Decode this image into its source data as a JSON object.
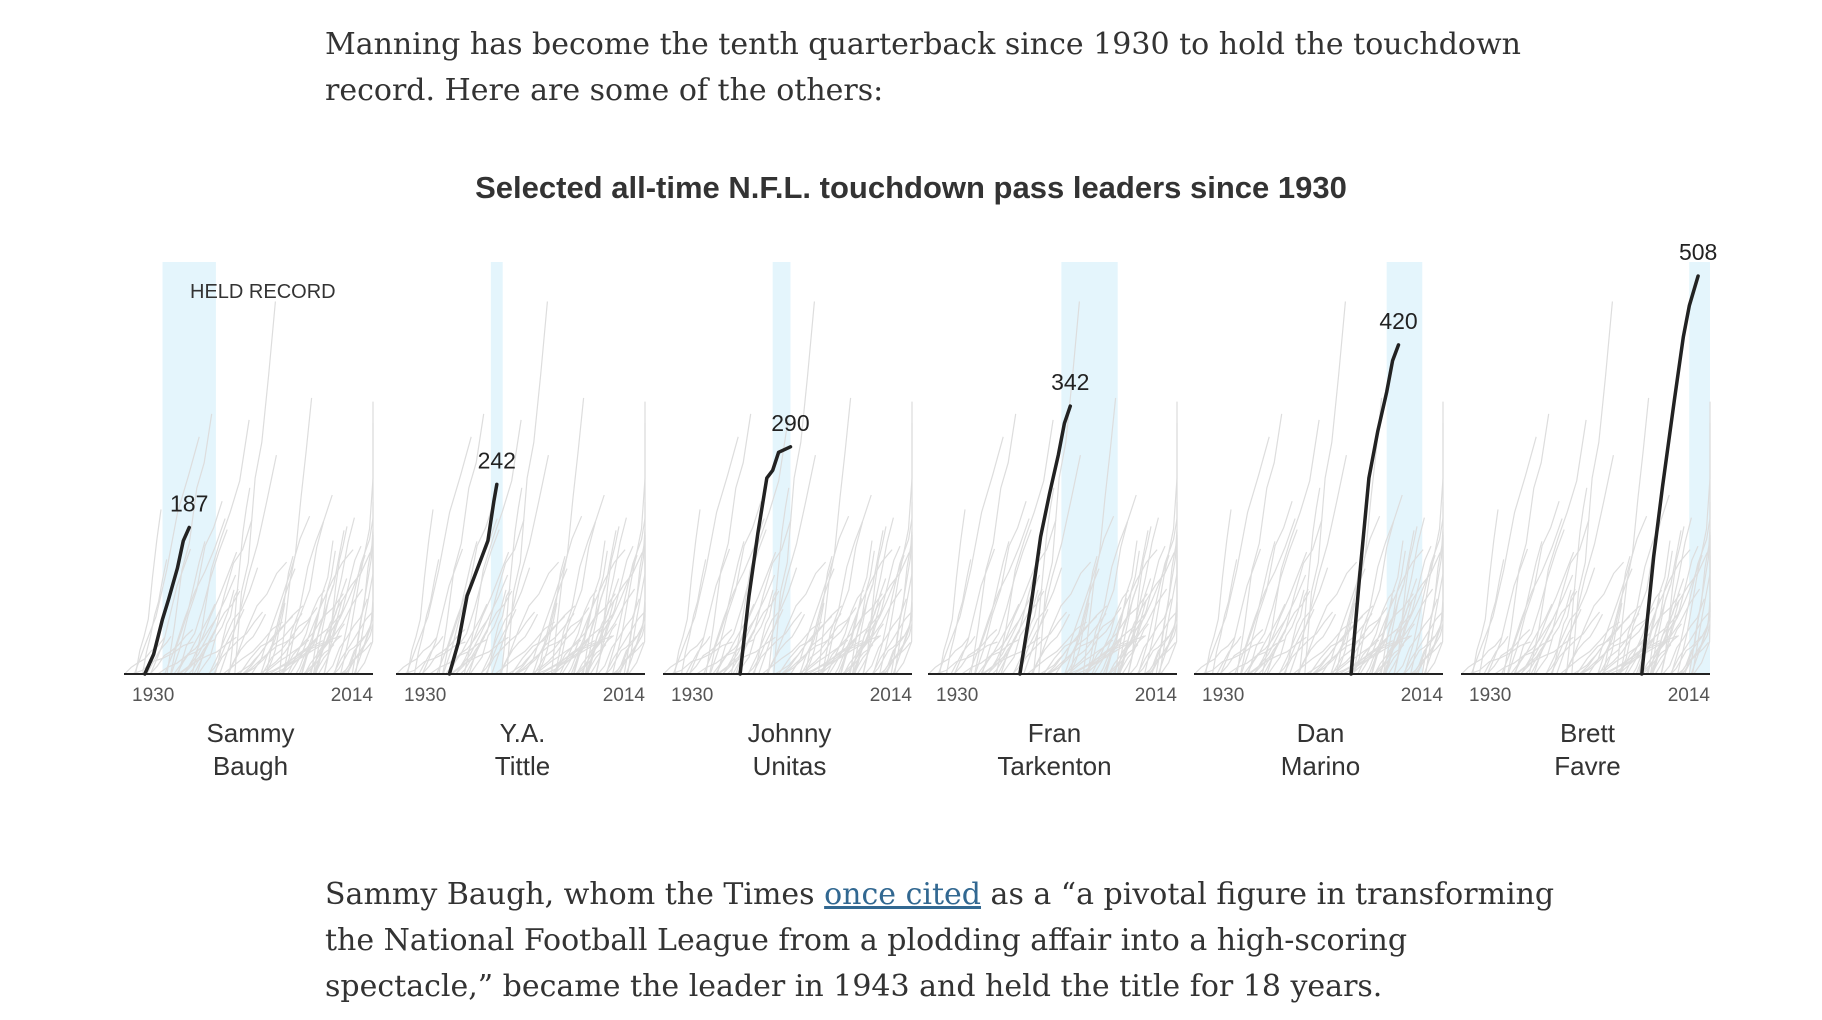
{
  "intro_text": "Manning has become the tenth quarterback since 1930 to hold the touchdown record. Here are some of the others:",
  "outro": {
    "before": "Sammy Baugh, whom the Times ",
    "link": "once cited",
    "after": " as a “a pivotal figure in transforming the National Football League from a plodding affair into a high-scoring spectacle,” became the leader in 1943 and held the title for 18 years."
  },
  "colors": {
    "highlight": "#e4f5fc",
    "player_line": "#222222",
    "background_lines": "#dddddd",
    "axis": "#222222",
    "link": "#326891"
  },
  "chart_data": {
    "type": "line",
    "title": "Selected all-time N.F.L. touchdown pass leaders since 1930",
    "highlight_label": "HELD RECORD",
    "xlim": [
      1930,
      2014
    ],
    "ylim": [
      0,
      508
    ],
    "x_tick_labels": [
      "1930",
      "2014"
    ],
    "panels": [
      {
        "name_line1": "Sammy",
        "name_line2": "Baugh",
        "final": 187,
        "final_label": "187",
        "held": [
          1943,
          1961
        ],
        "series": {
          "x": [
            1937,
            1940,
            1943,
            1945,
            1948,
            1950,
            1952
          ],
          "y": [
            0,
            25,
            70,
            95,
            135,
            170,
            187
          ]
        }
      },
      {
        "name_line1": "Y.A.",
        "name_line2": "Tittle",
        "final": 242,
        "final_label": "242",
        "held": [
          1962,
          1966
        ],
        "series": {
          "x": [
            1948,
            1951,
            1954,
            1956,
            1959,
            1961,
            1963,
            1964
          ],
          "y": [
            0,
            40,
            100,
            120,
            150,
            170,
            220,
            242
          ]
        }
      },
      {
        "name_line1": "Johnny",
        "name_line2": "Unitas",
        "final": 290,
        "final_label": "290",
        "held": [
          1967,
          1973
        ],
        "series": {
          "x": [
            1956,
            1959,
            1962,
            1965,
            1967,
            1969,
            1973
          ],
          "y": [
            0,
            100,
            180,
            250,
            260,
            283,
            290
          ]
        }
      },
      {
        "name_line1": "Fran",
        "name_line2": "Tarkenton",
        "final": 342,
        "final_label": "342",
        "held": [
          1975,
          1994
        ],
        "series": {
          "x": [
            1961,
            1965,
            1968,
            1971,
            1974,
            1976,
            1978
          ],
          "y": [
            0,
            95,
            175,
            230,
            280,
            320,
            342
          ]
        }
      },
      {
        "name_line1": "Dan",
        "name_line2": "Marino",
        "final": 420,
        "final_label": "420",
        "held": [
          1995,
          2007
        ],
        "series": {
          "x": [
            1983,
            1986,
            1989,
            1992,
            1995,
            1997,
            1999
          ],
          "y": [
            0,
            130,
            250,
            310,
            360,
            400,
            420
          ]
        }
      },
      {
        "name_line1": "Brett",
        "name_line2": "Favre",
        "final": 508,
        "final_label": "508",
        "held": [
          2007,
          2014
        ],
        "series": {
          "x": [
            1991,
            1995,
            1998,
            2002,
            2005,
            2007,
            2010
          ],
          "y": [
            0,
            150,
            240,
            350,
            430,
            470,
            508
          ]
        }
      }
    ]
  }
}
